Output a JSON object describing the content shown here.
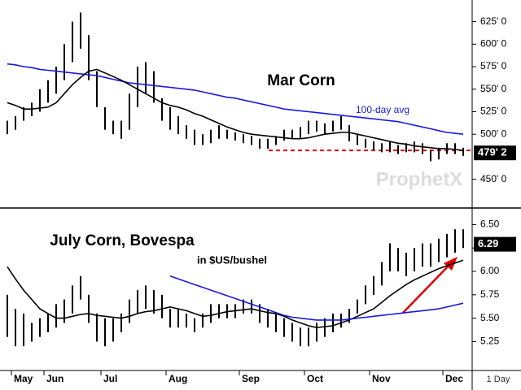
{
  "chart_data": [
    {
      "type": "ohlc",
      "title": "Mar Corn",
      "annotation": "100-day avg",
      "watermark": "ProphetX",
      "ylim": [
        419,
        649
      ],
      "yticks": [
        {
          "value": 450,
          "label": "450' 0"
        },
        {
          "value": 500,
          "label": "500' 0"
        },
        {
          "value": 525,
          "label": "525' 0"
        },
        {
          "value": 550,
          "label": "550' 0"
        },
        {
          "value": 575,
          "label": "575' 0"
        },
        {
          "value": 600,
          "label": "600' 0"
        },
        {
          "value": 625,
          "label": "625' 0"
        }
      ],
      "last": {
        "value": 479.25,
        "label": "479' 2"
      },
      "bars": {
        "color": "#000000",
        "high": [
          515,
          520,
          530,
          535,
          550,
          560,
          575,
          600,
          625,
          635,
          610,
          570,
          530,
          515,
          515,
          545,
          575,
          580,
          570,
          540,
          530,
          520,
          510,
          505,
          500,
          505,
          510,
          505,
          502,
          500,
          498,
          495,
          495,
          498,
          505,
          505,
          508,
          515,
          515,
          512,
          515,
          520,
          510,
          500,
          495,
          492,
          490,
          492,
          488,
          490,
          492,
          490,
          482,
          485,
          490,
          490,
          485
        ],
        "low": [
          500,
          505,
          515,
          520,
          525,
          535,
          545,
          560,
          580,
          595,
          560,
          530,
          505,
          500,
          495,
          505,
          530,
          545,
          535,
          515,
          505,
          500,
          495,
          488,
          488,
          490,
          495,
          495,
          493,
          490,
          488,
          484,
          484,
          488,
          493,
          495,
          496,
          500,
          503,
          500,
          503,
          505,
          492,
          488,
          485,
          482,
          480,
          480,
          478,
          480,
          480,
          478,
          470,
          472,
          478,
          478,
          476
        ]
      },
      "series": [
        {
          "color": "#1a1adc",
          "values": [
            578,
            577,
            575,
            574,
            572,
            571,
            570,
            569,
            568,
            567,
            566,
            565,
            563,
            561,
            559,
            557,
            556,
            555,
            554,
            553,
            552,
            551,
            550,
            549,
            547,
            545,
            543,
            541,
            540,
            538,
            536,
            534,
            532,
            530,
            528,
            527,
            526,
            525,
            524,
            523,
            522,
            521,
            520,
            519,
            518,
            517,
            516,
            515,
            514,
            512,
            510,
            508,
            506,
            504,
            502,
            501,
            500
          ]
        },
        {
          "color": "#000000",
          "values": [
            535,
            532,
            528,
            528,
            529,
            530,
            535,
            545,
            555,
            563,
            570,
            572,
            568,
            564,
            560,
            555,
            550,
            545,
            540,
            535,
            532,
            530,
            527,
            523,
            520,
            516,
            512,
            508,
            505,
            502,
            500,
            499,
            498,
            497,
            496,
            495,
            495,
            496,
            498,
            500,
            501,
            502,
            502,
            500,
            498,
            496,
            494,
            492,
            490,
            489,
            487,
            486,
            485,
            484,
            484,
            483,
            482
          ]
        }
      ],
      "reference_line": {
        "value": 482,
        "color": "#e00000"
      }
    },
    {
      "type": "ohlc",
      "title": "July Corn, Bovespa",
      "subtitle": "in $US/bushel",
      "interval": "1 Day",
      "ylim": [
        4.95,
        6.66
      ],
      "yticks": [
        {
          "value": 5.25,
          "label": "5.25"
        },
        {
          "value": 5.5,
          "label": "5.50"
        },
        {
          "value": 5.75,
          "label": "5.75"
        },
        {
          "value": 6,
          "label": "6.00"
        },
        {
          "value": 6.25,
          "label": "6.25"
        },
        {
          "value": 6.5,
          "label": "6.50"
        }
      ],
      "last": {
        "value": 6.29,
        "label": "6.29"
      },
      "categories": [
        null,
        "May",
        null,
        null,
        null,
        "Jun",
        null,
        null,
        null,
        null,
        null,
        null,
        "Jul",
        null,
        null,
        null,
        null,
        null,
        null,
        null,
        "Aug",
        null,
        null,
        null,
        null,
        null,
        null,
        null,
        null,
        "Sep",
        null,
        null,
        null,
        null,
        null,
        null,
        null,
        "Oct",
        null,
        null,
        null,
        null,
        null,
        null,
        null,
        "Nov",
        null,
        null,
        null,
        null,
        null,
        null,
        null,
        null,
        "Dec",
        null,
        null
      ],
      "bars": {
        "color": "#000000",
        "high": [
          5.75,
          5.6,
          5.55,
          5.45,
          5.5,
          5.55,
          5.65,
          5.7,
          5.85,
          5.95,
          5.75,
          5.55,
          5.5,
          5.5,
          5.55,
          5.7,
          5.8,
          5.85,
          5.8,
          5.75,
          5.6,
          5.6,
          5.55,
          5.5,
          5.55,
          5.65,
          5.65,
          5.65,
          5.65,
          5.7,
          5.7,
          5.65,
          5.6,
          5.55,
          5.5,
          5.45,
          5.4,
          5.4,
          5.45,
          5.5,
          5.55,
          5.55,
          5.6,
          5.7,
          5.85,
          5.95,
          6.1,
          6.3,
          6.25,
          6.2,
          6.25,
          6.3,
          6.3,
          6.35,
          6.4,
          6.45,
          6.45
        ],
        "low": [
          5.3,
          5.2,
          5.2,
          5.25,
          5.3,
          5.35,
          5.4,
          5.45,
          5.55,
          5.7,
          5.45,
          5.25,
          5.2,
          5.25,
          5.35,
          5.45,
          5.55,
          5.6,
          5.55,
          5.5,
          5.4,
          5.4,
          5.4,
          5.35,
          5.4,
          5.45,
          5.5,
          5.5,
          5.5,
          5.55,
          5.55,
          5.45,
          5.4,
          5.35,
          5.3,
          5.25,
          5.2,
          5.2,
          5.25,
          5.3,
          5.35,
          5.4,
          5.45,
          5.55,
          5.65,
          5.75,
          5.85,
          6,
          6,
          5.95,
          6,
          6.05,
          6.05,
          6.1,
          6.15,
          6.2,
          6.25
        ]
      },
      "series": [
        {
          "color": "#000000",
          "values": [
            6.05,
            5.92,
            5.8,
            5.7,
            5.6,
            5.55,
            5.5,
            5.5,
            5.52,
            5.54,
            5.55,
            5.53,
            5.52,
            5.51,
            5.5,
            5.52,
            5.55,
            5.57,
            5.58,
            5.6,
            5.62,
            5.6,
            5.58,
            5.55,
            5.52,
            5.53,
            5.55,
            5.57,
            5.58,
            5.59,
            5.6,
            5.58,
            5.56,
            5.55,
            5.52,
            5.48,
            5.45,
            5.42,
            5.4,
            5.41,
            5.42,
            5.45,
            5.48,
            5.52,
            5.56,
            5.6,
            5.67,
            5.74,
            5.8,
            5.86,
            5.91,
            5.95,
            5.99,
            6.03,
            6.06,
            6.09,
            6.12
          ]
        },
        {
          "color": "#1a1adc",
          "values": [
            null,
            null,
            null,
            null,
            null,
            null,
            null,
            null,
            null,
            null,
            null,
            null,
            null,
            null,
            null,
            null,
            null,
            null,
            null,
            null,
            5.95,
            5.92,
            5.89,
            5.86,
            5.83,
            5.8,
            5.77,
            5.74,
            5.71,
            5.68,
            5.65,
            5.62,
            5.59,
            5.56,
            5.53,
            5.51,
            5.5,
            5.49,
            5.48,
            5.48,
            5.48,
            5.48,
            5.49,
            5.5,
            5.51,
            5.52,
            5.53,
            5.54,
            5.55,
            5.56,
            5.57,
            5.58,
            5.59,
            5.6,
            5.62,
            5.64,
            5.66
          ]
        }
      ]
    }
  ]
}
